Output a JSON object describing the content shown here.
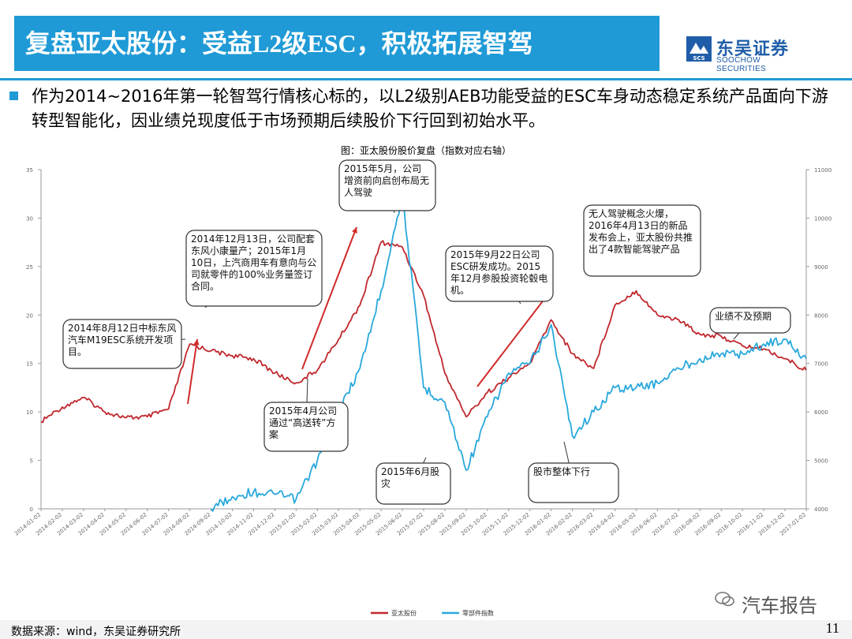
{
  "header": {
    "title": "复盘亚太股份：受益L2级ESC，积极拓展智驾",
    "logo_cn": "东吴证券",
    "logo_en": "SOOCHOW SECURITIES",
    "logo_abbr": "SCS"
  },
  "body": {
    "paragraph": "作为2014~2016年第一轮智驾行情核心标的，以L2级别AEB功能受益的ESC车身动态稳定系统产品面向下游转型智能化，因业绩兑现度低于市场预期后续股价下行回到初始水平。"
  },
  "footer": {
    "source": "数据来源：wind，东吴证券研究所",
    "page": "11",
    "watermark": "汽车报告"
  },
  "colors": {
    "brand_blue": "#1f9ad6",
    "stock_red": "#c0282d",
    "index_blue": "#29a8dc"
  },
  "chart_data": {
    "type": "line",
    "title": "图：亚太股份股价复盘（指数对应右轴）",
    "x": [
      "2014-01-02",
      "2014-02-02",
      "2014-03-02",
      "2014-04-02",
      "2014-05-02",
      "2014-06-02",
      "2014-07-02",
      "2014-08-02",
      "2014-09-02",
      "2014-10-02",
      "2014-11-02",
      "2014-12-02",
      "2015-01-02",
      "2015-02-02",
      "2015-03-02",
      "2015-04-02",
      "2015-05-02",
      "2015-06-02",
      "2015-07-02",
      "2015-08-02",
      "2015-09-02",
      "2015-10-02",
      "2015-11-02",
      "2015-12-02",
      "2016-01-02",
      "2016-02-02",
      "2016-03-02",
      "2016-04-02",
      "2016-05-02",
      "2016-06-02",
      "2016-07-02",
      "2016-08-02",
      "2016-09-02",
      "2016-10-02",
      "2016-11-02",
      "2016-12-02",
      "2017-01-02"
    ],
    "y_left_ticks": [
      0,
      5,
      10,
      15,
      20,
      25,
      30,
      35
    ],
    "y_left_lim": [
      0,
      35
    ],
    "y_right_ticks": [
      4000,
      5000,
      6000,
      7000,
      8000,
      9000,
      10000,
      11000
    ],
    "y_right_lim": [
      4000,
      11000
    ],
    "series": [
      {
        "name": "亚太股份",
        "axis": "left",
        "color": "#c0282d",
        "values": [
          9.0,
          10.5,
          11.5,
          10.0,
          9.4,
          9.5,
          10.3,
          17.0,
          16.3,
          15.8,
          15.5,
          14.0,
          13.0,
          14.3,
          17.5,
          21.0,
          27.5,
          27.0,
          22.0,
          14.0,
          9.5,
          12.0,
          13.5,
          15.0,
          19.5,
          16.0,
          14.5,
          21.0,
          22.5,
          20.0,
          19.5,
          18.0,
          17.8,
          16.8,
          16.5,
          15.5,
          14.3
        ]
      },
      {
        "name": "零部件指数",
        "axis": "right",
        "color": "#29a8dc",
        "values": [
          null,
          null,
          null,
          null,
          null,
          null,
          null,
          null,
          4000,
          4250,
          4350,
          4300,
          4200,
          5000,
          6000,
          6900,
          8500,
          10500,
          6500,
          6200,
          4800,
          5900,
          6800,
          7000,
          7800,
          5500,
          6000,
          6500,
          6500,
          6600,
          6900,
          7100,
          7200,
          7200,
          7400,
          7500,
          7100
        ]
      }
    ],
    "annotations": [
      "2014年8月12日中标东风汽车M19ESC系统开发项目。",
      "2014年12月13日，公司配套东风小康量产；2015年1月10日，上汽商用车有意向与公司就零件的100%业务量签订合同。",
      "2015年4月公司通过“高送转”方案",
      "2015年5月，公司增资前向启创布局无人驾驶",
      "2015年6月股灾",
      "2015年9月22日公司ESC研发成功。2015年12月参股投资轮毂电机。",
      "股市整体下行",
      "无人驾驶概念火爆，2016年4月13日的新品发布会上，亚太股份共推出了4款智能驾驶产品",
      "业绩不及预期"
    ],
    "legend_position": "bottom-center",
    "grid": false
  }
}
